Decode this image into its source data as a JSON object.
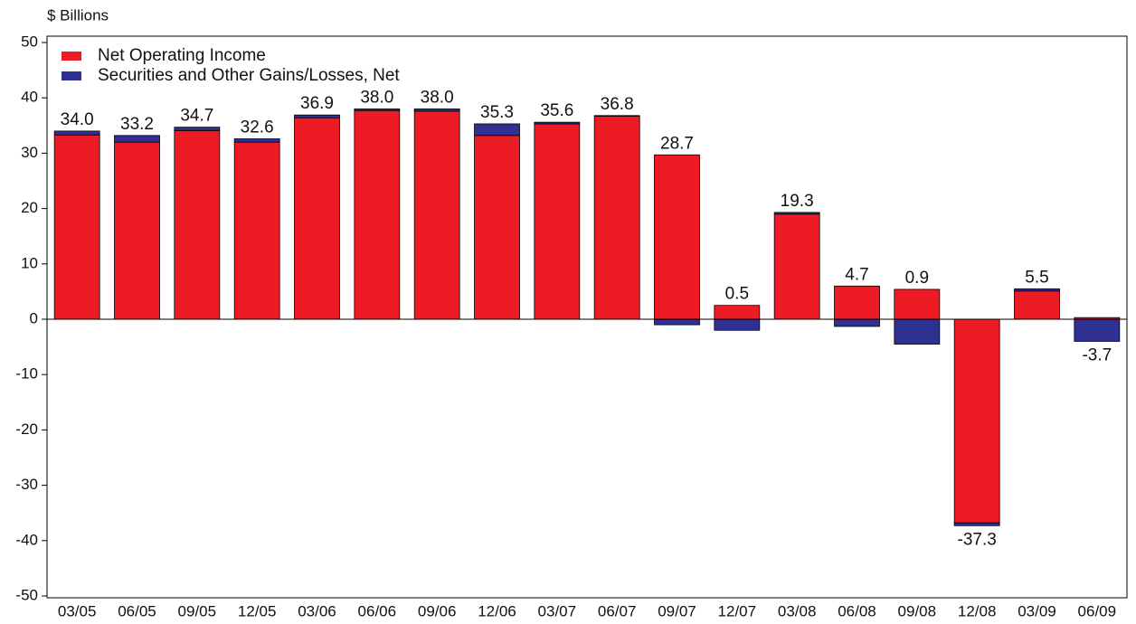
{
  "chart_data": {
    "type": "bar",
    "stacked": true,
    "y_label": "$ Billions",
    "categories": [
      "03/05",
      "06/05",
      "09/05",
      "12/05",
      "03/06",
      "06/06",
      "09/06",
      "12/06",
      "03/07",
      "06/07",
      "09/07",
      "12/07",
      "03/08",
      "06/08",
      "09/08",
      "12/08",
      "03/09",
      "06/09"
    ],
    "series": [
      {
        "name": "Net Operating Income",
        "color": "#ed1c24",
        "values": [
          33.3,
          32.0,
          34.1,
          32.0,
          36.4,
          37.7,
          37.6,
          33.2,
          35.3,
          36.7,
          29.7,
          2.5,
          19.0,
          6.0,
          5.4,
          -36.8,
          5.1,
          0.3
        ]
      },
      {
        "name": "Securities and Other Gains/Losses, Net",
        "color": "#2e3192",
        "values": [
          0.7,
          1.2,
          0.6,
          0.6,
          0.5,
          0.3,
          0.4,
          2.1,
          0.3,
          0.1,
          -1.0,
          -2.0,
          0.3,
          -1.3,
          -4.5,
          -0.5,
          0.4,
          -4.0
        ]
      }
    ],
    "total_labels": [
      "34.0",
      "33.2",
      "34.7",
      "32.6",
      "36.9",
      "38.0",
      "38.0",
      "35.3",
      "35.6",
      "36.8",
      "28.7",
      "0.5",
      "19.3",
      "4.7",
      "0.9",
      "-37.3",
      "5.5",
      "-3.7"
    ],
    "ylim": [
      -50,
      50
    ],
    "yticks": [
      -50,
      -40,
      -30,
      -20,
      -10,
      0,
      10,
      20,
      30,
      40,
      50
    ],
    "legend": "top-left"
  }
}
